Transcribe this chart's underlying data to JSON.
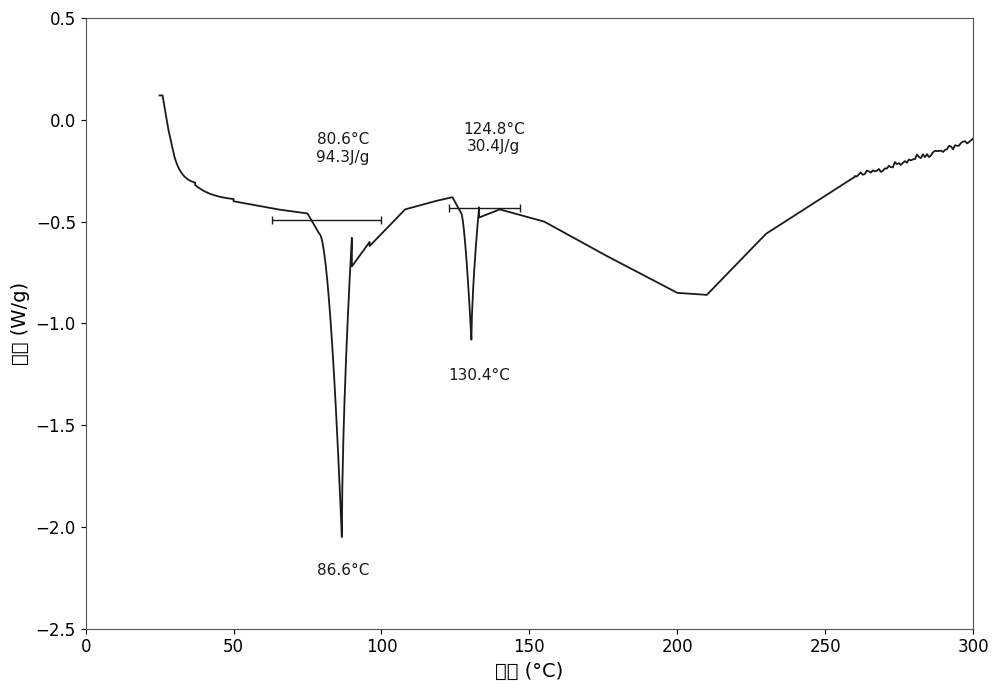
{
  "xlim": [
    0,
    300
  ],
  "ylim": [
    -2.5,
    0.5
  ],
  "xlabel": "温度 (°C)",
  "ylabel": "热流 (W/g)",
  "line_color": "#1a1a1a",
  "background_color": "#ffffff",
  "hline1_y": -0.49,
  "hline1_x1": 63,
  "hline1_x2": 100,
  "hline2_y": -0.435,
  "hline2_x1": 123,
  "hline2_x2": 147,
  "tick_label_size": 12,
  "axis_label_size": 14
}
